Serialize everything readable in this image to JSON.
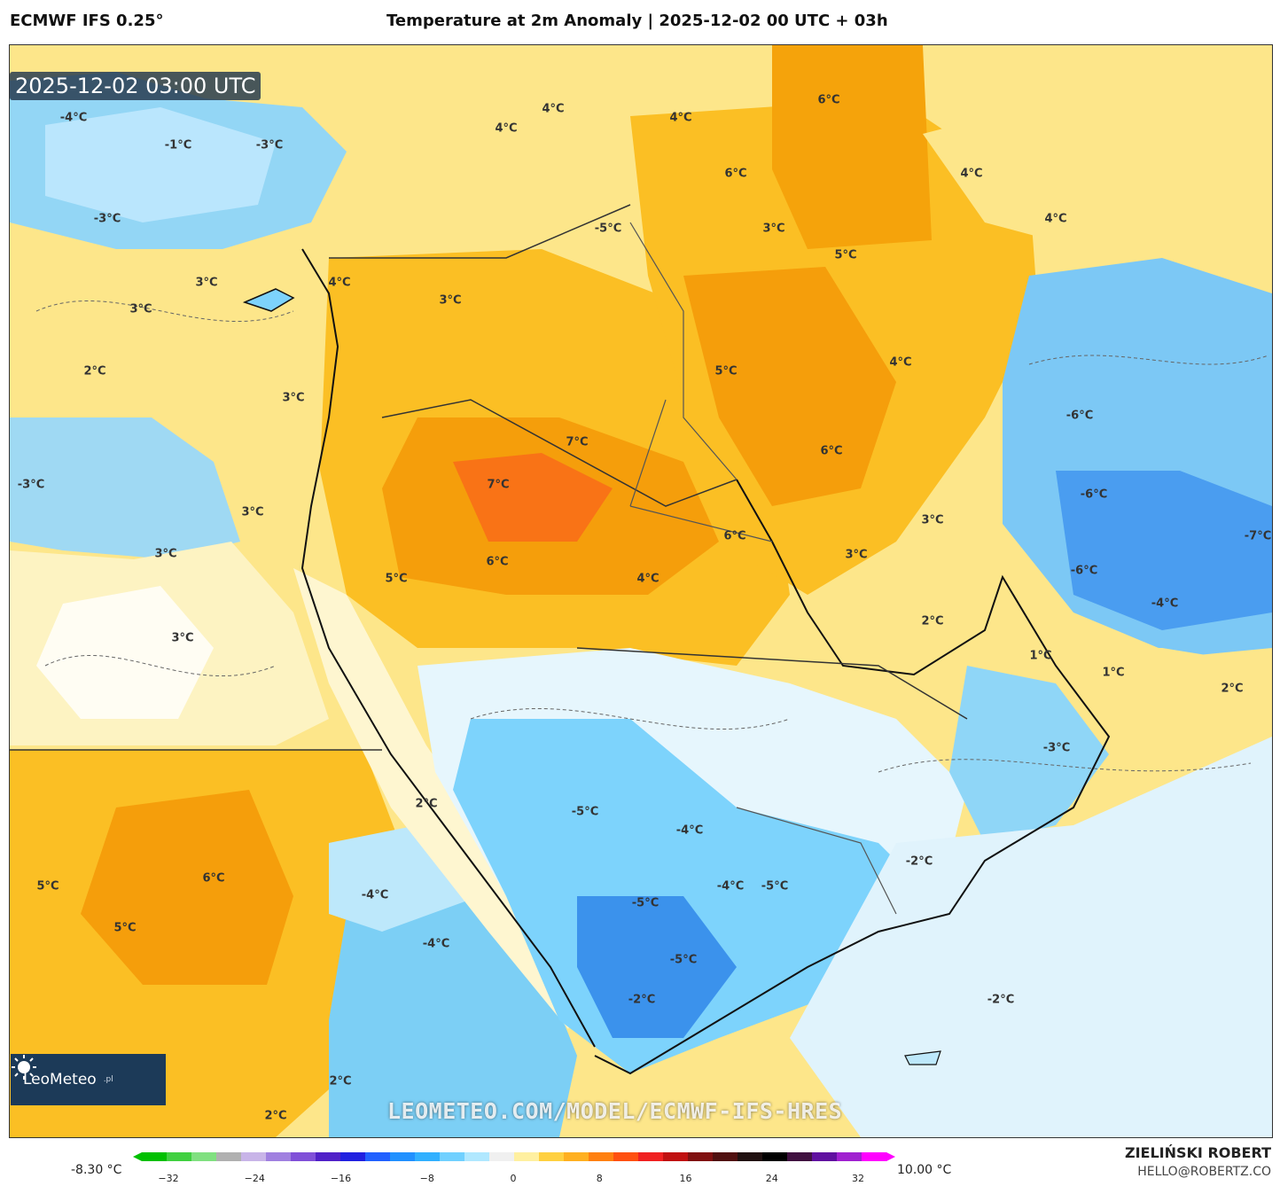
{
  "header": {
    "model_name": "ECMWF IFS 0.25°",
    "title": "Temperature at 2m Anomaly | 2025-12-02 00 UTC + 03h"
  },
  "map": {
    "timestamp": "2025-12-02 03:00 UTC",
    "watermark": "LEOMETEO.COM/MODEL/ECMWF-IFS-HRES",
    "logo": {
      "name": "LeoMeteo",
      "tld": ".pl"
    },
    "colors": {
      "cold_strong": "#3b82f6",
      "cold": "#7dd3fc",
      "cold_light": "#bae6fd",
      "neutral": "#ffffff",
      "warm_light": "#fef3c7",
      "warm": "#fcd34d",
      "warm_mid": "#fbbf24",
      "warm_strong": "#f59e0b",
      "hot": "#f97316"
    },
    "labels": [
      {
        "text": "-4°C"
      },
      {
        "text": "-1°C"
      },
      {
        "text": "-3°C"
      },
      {
        "text": "-3°C"
      },
      {
        "text": "4°C"
      },
      {
        "text": "4°C"
      },
      {
        "text": "4°C"
      },
      {
        "text": "6°C"
      },
      {
        "text": "6°C"
      },
      {
        "text": "4°C"
      },
      {
        "text": "4°C"
      },
      {
        "text": "-5°C"
      },
      {
        "text": "3°C"
      },
      {
        "text": "5°C"
      },
      {
        "text": "3°C"
      },
      {
        "text": "3°C"
      },
      {
        "text": "4°C"
      },
      {
        "text": "3°C"
      },
      {
        "text": "2°C"
      },
      {
        "text": "3°C"
      },
      {
        "text": "5°C"
      },
      {
        "text": "4°C"
      },
      {
        "text": "7°C"
      },
      {
        "text": "7°C"
      },
      {
        "text": "6°C"
      },
      {
        "text": "-6°C"
      },
      {
        "text": "-3°C"
      },
      {
        "text": "3°C"
      },
      {
        "text": "-6°C"
      },
      {
        "text": "3°C"
      },
      {
        "text": "6°C"
      },
      {
        "text": "-7°C"
      },
      {
        "text": "3°C"
      },
      {
        "text": "3°C"
      },
      {
        "text": "5°C"
      },
      {
        "text": "6°C"
      },
      {
        "text": "4°C"
      },
      {
        "text": "-6°C"
      },
      {
        "text": "-4°C"
      },
      {
        "text": "2°C"
      },
      {
        "text": "3°C"
      },
      {
        "text": "1°C"
      },
      {
        "text": "1°C"
      },
      {
        "text": "2°C"
      },
      {
        "text": "-3°C"
      },
      {
        "text": "2°C"
      },
      {
        "text": "-5°C"
      },
      {
        "text": "-4°C"
      },
      {
        "text": "-2°C"
      },
      {
        "text": "5°C"
      },
      {
        "text": "6°C"
      },
      {
        "text": "-4°C"
      },
      {
        "text": "-5°C"
      },
      {
        "text": "-2°C"
      },
      {
        "text": "5°C"
      },
      {
        "text": "-4°C"
      },
      {
        "text": "-4°C"
      },
      {
        "text": "-5°C"
      },
      {
        "text": "-5°C"
      },
      {
        "text": "-2°C"
      },
      {
        "text": "2°C"
      },
      {
        "text": "2°C"
      }
    ]
  },
  "legend": {
    "min_label": "-8.30 °C",
    "max_label": "10.00 °C",
    "ticks": [
      "−32",
      "−24",
      "−16",
      "−8",
      "0",
      "8",
      "16",
      "24",
      "32"
    ],
    "colors": [
      "#00c000",
      "#40d040",
      "#80e080",
      "#b0b0b0",
      "#c8b4e8",
      "#a080e0",
      "#8050d8",
      "#5020c8",
      "#2020e0",
      "#2060ff",
      "#2090ff",
      "#30b0ff",
      "#70d0ff",
      "#b0e8ff",
      "#f0f0f0",
      "#fff0a0",
      "#ffd040",
      "#ffb020",
      "#ff8010",
      "#ff5010",
      "#f02020",
      "#c01010",
      "#801010",
      "#501010",
      "#201010",
      "#000000",
      "#401040",
      "#6010a0",
      "#a020d0",
      "#ff00ff"
    ]
  },
  "footer": {
    "author": "ZIELIŃSKI ROBERT",
    "email": "HELLO@ROBERTZ.CO"
  }
}
